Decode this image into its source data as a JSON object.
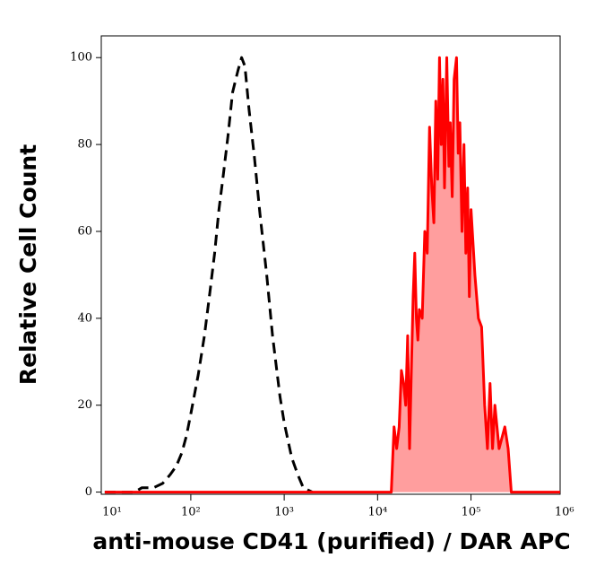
{
  "chart_data": {
    "type": "histogram-overlay",
    "xlabel": "anti-mouse CD41 (purified) / DAR APC",
    "ylabel": "Relative Cell Count",
    "xscale": "log",
    "xlim": [
      11,
      900000
    ],
    "ylim": [
      -0.5,
      105
    ],
    "xticks": [
      {
        "value": 10,
        "label": "10¹"
      },
      {
        "value": 100,
        "label": "10²"
      },
      {
        "value": 1000,
        "label": "10³"
      },
      {
        "value": 10000,
        "label": "10⁴"
      },
      {
        "value": 100000,
        "label": "10⁵"
      },
      {
        "value": 1000000,
        "label": "10⁶"
      }
    ],
    "yticks": [
      0,
      20,
      40,
      60,
      80,
      100
    ],
    "series": [
      {
        "color": "#000000",
        "dashed": true,
        "filled": false,
        "x": [
          12,
          25,
          30,
          40,
          50,
          60,
          70,
          80,
          90,
          100,
          120,
          140,
          160,
          180,
          200,
          220,
          250,
          280,
          320,
          350,
          380,
          420,
          480,
          550,
          650,
          750,
          900,
          1000,
          1200,
          1400,
          1600,
          2000
        ],
        "values": [
          0,
          0,
          1,
          1,
          2,
          4,
          6,
          9,
          13,
          18,
          27,
          36,
          46,
          55,
          65,
          72,
          82,
          92,
          97,
          100,
          98,
          88,
          77,
          64,
          50,
          36,
          22,
          16,
          8,
          4,
          1,
          0
        ]
      },
      {
        "color": "#ff0000",
        "fill": "#ff9e9e",
        "dashed": false,
        "filled": true,
        "x": [
          12,
          14000,
          15000,
          16000,
          17000,
          18000,
          19000,
          20000,
          21000,
          22000,
          23000,
          24000,
          25000,
          26000,
          27000,
          28000,
          30000,
          32000,
          34000,
          36000,
          38000,
          40000,
          42000,
          44000,
          46000,
          48000,
          50000,
          52000,
          55000,
          58000,
          60000,
          63000,
          66000,
          70000,
          73000,
          76000,
          80000,
          84000,
          88000,
          92000,
          96000,
          100000,
          110000,
          120000,
          130000,
          140000,
          150000,
          160000,
          170000,
          180000,
          200000,
          230000,
          250000,
          270000,
          900000
        ],
        "values": [
          0,
          0,
          15,
          10,
          15,
          28,
          25,
          20,
          36,
          10,
          28,
          45,
          55,
          40,
          35,
          42,
          40,
          60,
          55,
          84,
          70,
          62,
          90,
          72,
          100,
          80,
          95,
          70,
          100,
          75,
          85,
          68,
          95,
          100,
          78,
          85,
          60,
          80,
          55,
          70,
          45,
          65,
          50,
          40,
          38,
          20,
          10,
          25,
          10,
          20,
          10,
          15,
          10,
          0,
          0
        ]
      }
    ]
  }
}
